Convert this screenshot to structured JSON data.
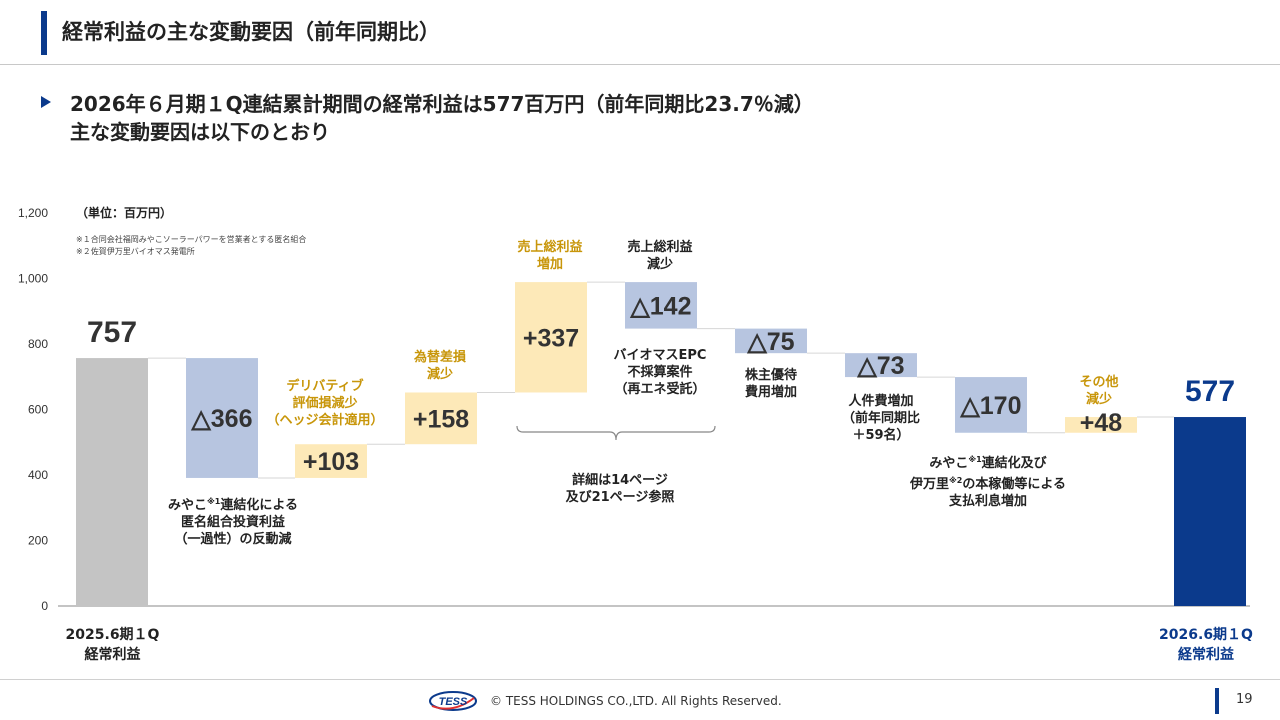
{
  "header": {
    "title": "経常利益の主な変動要因（前年同期比）"
  },
  "lead": {
    "line1": "2026年６月期１Q連結累計期間の経常利益は577百万円（前年同期比23.7％減）",
    "line2": "主な変動要因は以下のとおり"
  },
  "unit_label": "（単位：百万円）",
  "notes": [
    "※１合同会社福岡みやこソーラーパワーを営業者とする匿名組合",
    "※２佐賀伊万里バイオマス発電所"
  ],
  "annotations": {
    "a1_pre": "みやこ",
    "a1_sup": "※1",
    "a1_post": "連結化による",
    "a1_line2": "匿名組合投資利益",
    "a1_line3": "（一過性）の反動減",
    "a2_line1": "デリバティブ",
    "a2_line2": "評価損減少",
    "a2_line3": "（ヘッジ会計適用）",
    "a3_line1": "為替差損",
    "a3_line2": "減少",
    "a4_line1": "売上総利益",
    "a4_line2": "増加",
    "a5_line1": "売上総利益",
    "a5_line2": "減少",
    "a5_line3": "バイオマスEPC",
    "a5_line4": "不採算案件",
    "a5_line5": "（再エネ受託）",
    "a6_line1": "株主優待",
    "a6_line2": "費用増加",
    "a7_line1": "人件費増加",
    "a7_line2": "（前年同期比",
    "a7_line3": "＋59名）",
    "a8_pre": "みやこ",
    "a8_sup": "※1",
    "a8_post": "連結化及び",
    "a8_pre2": "伊万里",
    "a8_sup2": "※2",
    "a8_post2": "の本稼働等による",
    "a8_line3": "支払利息増加",
    "a9_line1": "その他",
    "a9_line2": "減少",
    "bracket_line1": "詳細は14ページ",
    "bracket_line2": "及び21ページ参照"
  },
  "categories": {
    "start_line1": "2025.6期１Q",
    "start_line2": "経常利益",
    "end_line1": "2026.6期１Q",
    "end_line2": "経常利益"
  },
  "footer": {
    "logo_text": "TESS",
    "copyright": "© TESS HOLDINGS CO.,LTD. All Rights Reserved.",
    "page": "19"
  },
  "colors": {
    "accent": "#0b3a8c",
    "start_bar": "#c4c4c4",
    "decrease": "#b7c5e0",
    "increase": "#fde9b8",
    "end_bar": "#0b3a8c",
    "gold_text": "#c8960a"
  },
  "chart_data": {
    "type": "waterfall",
    "ylim": [
      0,
      1200
    ],
    "yticks": [
      0,
      200,
      400,
      600,
      800,
      1000,
      1200
    ],
    "ytick_labels": [
      "0",
      "200",
      "400",
      "600",
      "800",
      "1,000",
      "1,200"
    ],
    "bars": [
      {
        "kind": "total",
        "value": 757,
        "label": "757"
      },
      {
        "kind": "decrease",
        "value": -366,
        "label": "△366"
      },
      {
        "kind": "increase",
        "value": 103,
        "label": "+103"
      },
      {
        "kind": "increase",
        "value": 158,
        "label": "+158"
      },
      {
        "kind": "increase",
        "value": 337,
        "label": "+337"
      },
      {
        "kind": "decrease",
        "value": -142,
        "label": "△142"
      },
      {
        "kind": "decrease",
        "value": -75,
        "label": "△75"
      },
      {
        "kind": "decrease",
        "value": -73,
        "label": "△73"
      },
      {
        "kind": "decrease",
        "value": -170,
        "label": "△170"
      },
      {
        "kind": "increase",
        "value": 48,
        "label": "+48"
      },
      {
        "kind": "total",
        "value": 577,
        "label": "577"
      }
    ]
  }
}
